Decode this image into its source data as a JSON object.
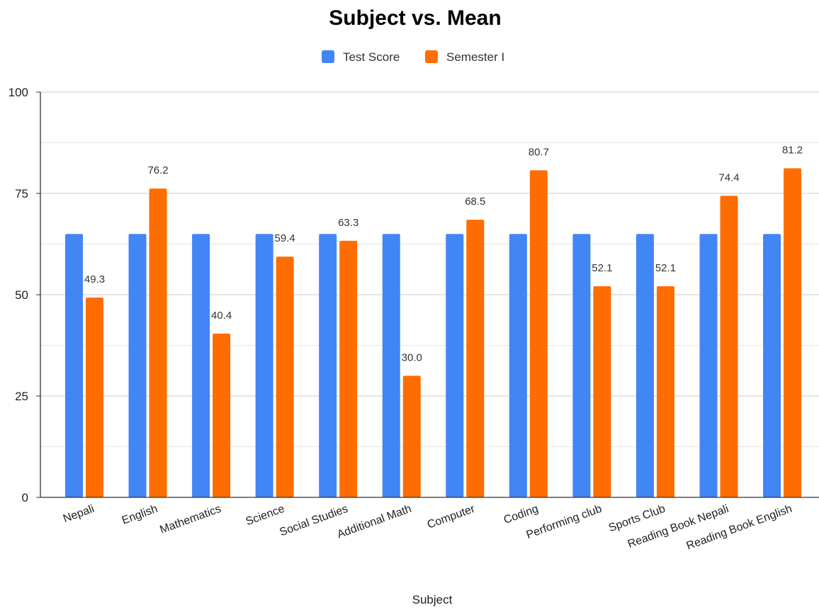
{
  "chart_data": {
    "type": "bar",
    "title": "Subject vs. Mean",
    "xlabel": "Subject",
    "ylabel": "",
    "ylim": [
      0,
      100
    ],
    "yticks": [
      0,
      25,
      50,
      75,
      100
    ],
    "grid": true,
    "legend_position": "top",
    "categories": [
      "Nepali",
      "English",
      "Mathematics",
      "Science",
      "Social Studies",
      "Additional Math",
      "Computer",
      "Coding",
      "Performing club",
      "Sports Club",
      "Reading Book Nepali",
      "Reading Book English"
    ],
    "series": [
      {
        "name": "Test Score",
        "color": "#4285F4",
        "values": [
          65,
          65,
          65,
          65,
          65,
          65,
          65,
          65,
          65,
          65,
          65,
          65
        ],
        "data_labels": [
          "",
          "",
          "",
          "",
          "",
          "",
          "",
          "",
          "",
          "",
          "",
          ""
        ]
      },
      {
        "name": "Semester I",
        "color": "#FF6D01",
        "values": [
          49.3,
          76.2,
          40.4,
          59.4,
          63.3,
          30.0,
          68.5,
          80.7,
          52.1,
          52.1,
          74.4,
          81.2
        ],
        "data_labels": [
          "49.3",
          "76.2",
          "40.4",
          "59.4",
          "63.3",
          "30.0",
          "68.5",
          "80.7",
          "52.1",
          "52.1",
          "74.4",
          "81.2"
        ]
      }
    ]
  }
}
